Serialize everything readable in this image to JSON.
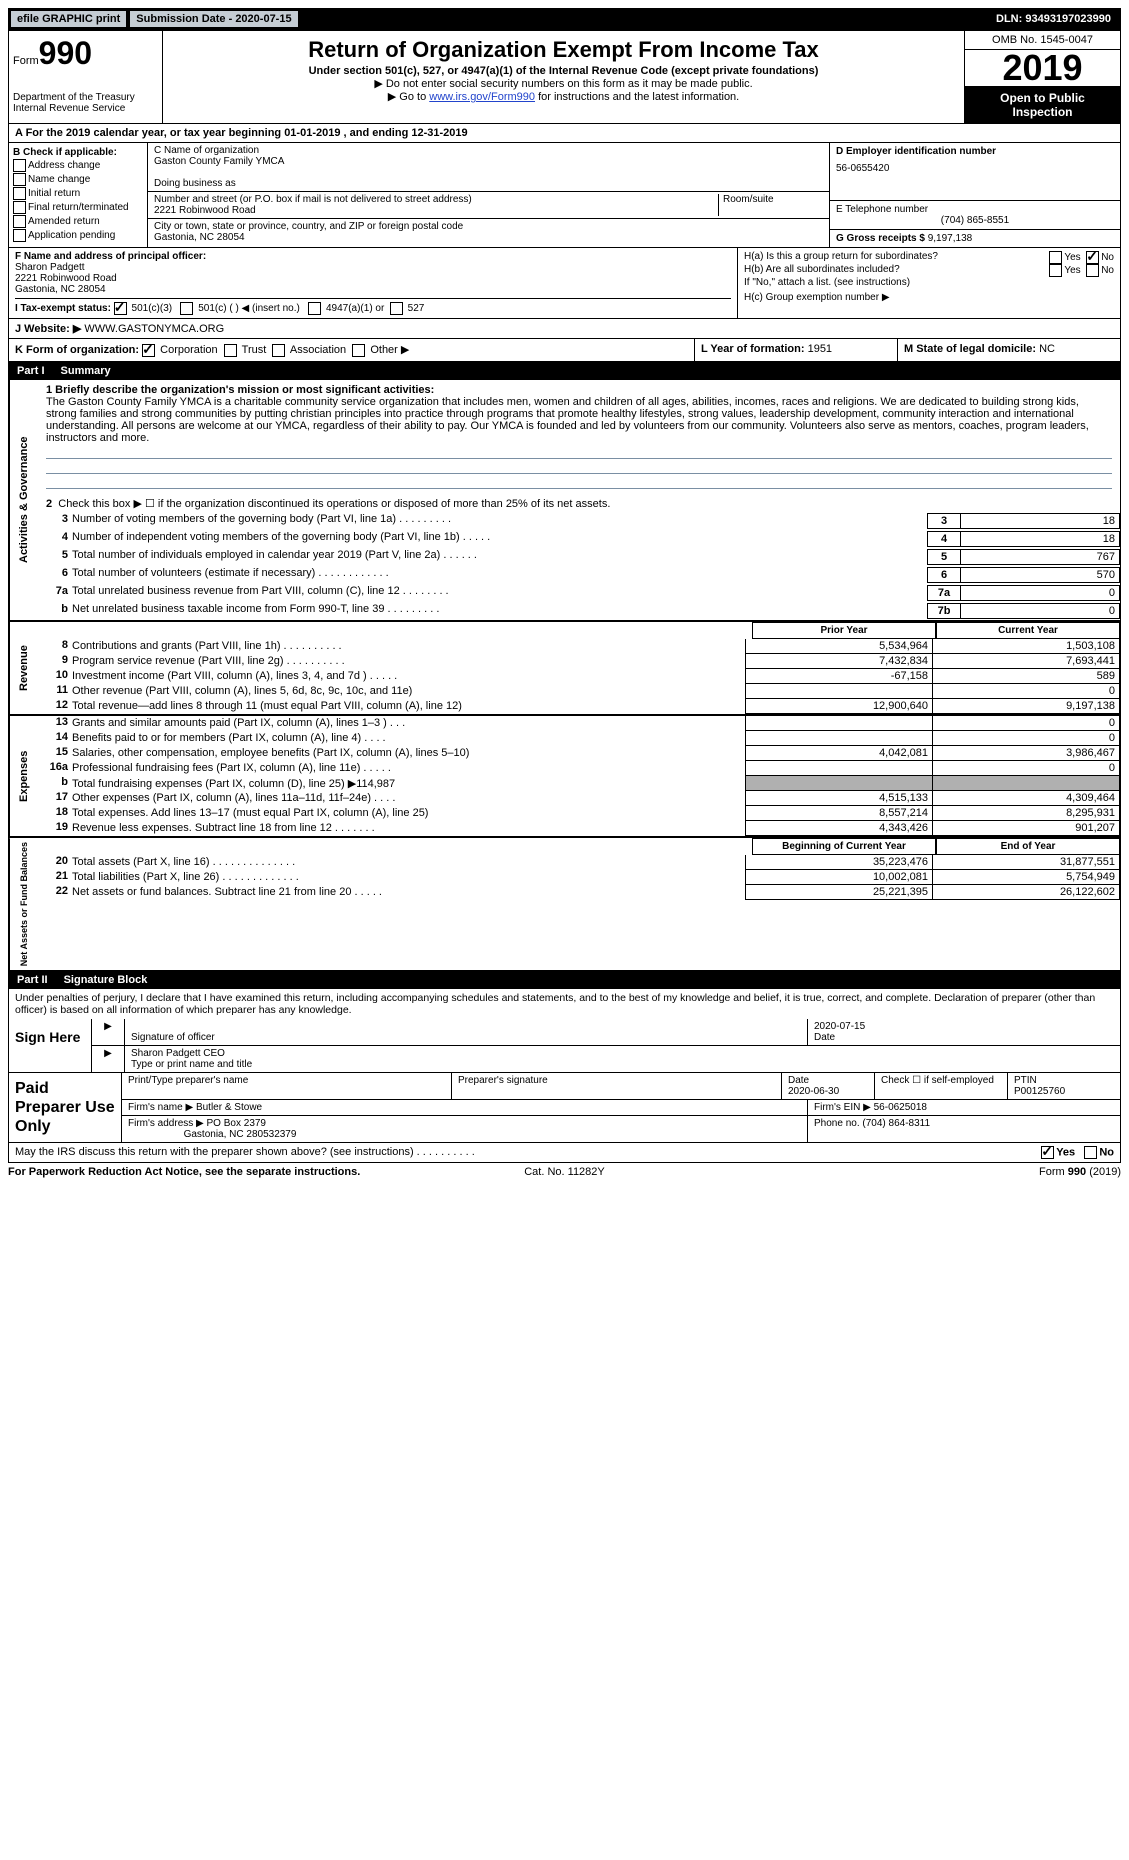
{
  "top": {
    "efile": "efile GRAPHIC print",
    "submission": "Submission Date - 2020-07-15",
    "dln": "DLN: 93493197023990"
  },
  "header": {
    "form_word": "Form",
    "form_num": "990",
    "dept": "Department of the Treasury\nInternal Revenue Service",
    "title": "Return of Organization Exempt From Income Tax",
    "sub": "Under section 501(c), 527, or 4947(a)(1) of the Internal Revenue Code (except private foundations)",
    "instr1": "▶ Do not enter social security numbers on this form as it may be made public.",
    "instr2_pre": "▶ Go to ",
    "instr2_link": "www.irs.gov/Form990",
    "instr2_post": " for instructions and the latest information.",
    "omb": "OMB No. 1545-0047",
    "year": "2019",
    "open": "Open to Public Inspection"
  },
  "line_a": "A For the 2019 calendar year, or tax year beginning 01-01-2019   , and ending 12-31-2019",
  "col_b": {
    "title": "B Check if applicable:",
    "opts": [
      "Address change",
      "Name change",
      "Initial return",
      "Final return/terminated",
      "Amended return",
      "Application pending"
    ]
  },
  "col_c": {
    "c_label": "C Name of organization",
    "c_name": "Gaston County Family YMCA",
    "dba_label": "Doing business as",
    "dba": "",
    "street_label": "Number and street (or P.O. box if mail is not delivered to street address)",
    "street": "2221 Robinwood Road",
    "room_label": "Room/suite",
    "city_label": "City or town, state or province, country, and ZIP or foreign postal code",
    "city": "Gastonia, NC  28054",
    "f_label": "F Name and address of principal officer:",
    "f_name": "Sharon Padgett",
    "f_street": "2221 Robinwood Road",
    "f_city": "Gastonia, NC  28054"
  },
  "col_d": {
    "d_label": "D Employer identification number",
    "d_val": "56-0655420",
    "e_label": "E Telephone number",
    "e_val": "(704) 865-8551",
    "g_label": "G Gross receipts $",
    "g_val": "9,197,138"
  },
  "h": {
    "ha_label": "H(a)  Is this a group return for subordinates?",
    "ha_yes": "Yes",
    "ha_no": "No",
    "hb_label": "H(b)  Are all subordinates included?",
    "hb_note": "If \"No,\" attach a list. (see instructions)",
    "hc_label": "H(c)  Group exemption number ▶"
  },
  "line_i": {
    "label": "I  Tax-exempt status:",
    "o1": "501(c)(3)",
    "o2": "501(c) (  ) ◀ (insert no.)",
    "o3": "4947(a)(1) or",
    "o4": "527"
  },
  "line_j": {
    "label": "J Website: ▶",
    "val": "WWW.GASTONYMCA.ORG"
  },
  "line_k": {
    "label": "K Form of organization:",
    "corp": "Corporation",
    "trust": "Trust",
    "assoc": "Association",
    "other": "Other ▶"
  },
  "line_l": {
    "label": "L Year of formation:",
    "val": "1951"
  },
  "line_m": {
    "label": "M State of legal domicile:",
    "val": "NC"
  },
  "part1": {
    "num": "Part I",
    "title": "Summary"
  },
  "mission": {
    "label": "1   Briefly describe the organization's mission or most significant activities:",
    "text": "The Gaston County Family YMCA is a charitable community service organization that includes men, women and children of all ages, abilities, incomes, races and religions. We are dedicated to building strong kids, strong families and strong communities by putting christian principles into practice through programs that promote healthy lifestyles, strong values, leadership development, community interaction and international understanding. All persons are welcome at our YMCA, regardless of their ability to pay. Our YMCA is founded and led by volunteers from our community. Volunteers also serve as mentors, coaches, program leaders, instructors and more."
  },
  "activities": {
    "vlabel": "Activities & Governance",
    "line2": "Check this box ▶ ☐ if the organization discontinued its operations or disposed of more than 25% of its net assets.",
    "rows": [
      {
        "n": "3",
        "d": "Number of voting members of the governing body (Part VI, line 1a)   .    .    .    .    .    .    .    .    .",
        "bn": "3",
        "v": "18"
      },
      {
        "n": "4",
        "d": "Number of independent voting members of the governing body (Part VI, line 1b)   .    .    .    .    .",
        "bn": "4",
        "v": "18"
      },
      {
        "n": "5",
        "d": "Total number of individuals employed in calendar year 2019 (Part V, line 2a)   .    .    .    .    .    .",
        "bn": "5",
        "v": "767"
      },
      {
        "n": "6",
        "d": "Total number of volunteers (estimate if necessary)   .    .    .    .    .    .    .    .    .    .    .    .",
        "bn": "6",
        "v": "570"
      },
      {
        "n": "7a",
        "d": "Total unrelated business revenue from Part VIII, column (C), line 12   .    .    .    .    .    .    .    .",
        "bn": "7a",
        "v": "0"
      },
      {
        "n": "b",
        "d": "Net unrelated business taxable income from Form 990-T, line 39   .    .    .    .    .    .    .    .    .",
        "bn": "7b",
        "v": "0"
      }
    ]
  },
  "revenue": {
    "vlabel": "Revenue",
    "header_prior": "Prior Year",
    "header_current": "Current Year",
    "rows": [
      {
        "n": "8",
        "d": "Contributions and grants (Part VIII, line 1h)   .    .    .    .    .    .    .    .    .    .",
        "p": "5,534,964",
        "c": "1,503,108"
      },
      {
        "n": "9",
        "d": "Program service revenue (Part VIII, line 2g)   .    .    .    .    .    .    .    .    .    .",
        "p": "7,432,834",
        "c": "7,693,441"
      },
      {
        "n": "10",
        "d": "Investment income (Part VIII, column (A), lines 3, 4, and 7d )   .    .    .    .    .",
        "p": "-67,158",
        "c": "589"
      },
      {
        "n": "11",
        "d": "Other revenue (Part VIII, column (A), lines 5, 6d, 8c, 9c, 10c, and 11e)",
        "p": "",
        "c": "0"
      },
      {
        "n": "12",
        "d": "Total revenue—add lines 8 through 11 (must equal Part VIII, column (A), line 12)",
        "p": "12,900,640",
        "c": "9,197,138"
      }
    ]
  },
  "expenses": {
    "vlabel": "Expenses",
    "rows": [
      {
        "n": "13",
        "d": "Grants and similar amounts paid (Part IX, column (A), lines 1–3 )   .    .    .",
        "p": "",
        "c": "0"
      },
      {
        "n": "14",
        "d": "Benefits paid to or for members (Part IX, column (A), line 4)   .    .    .    .",
        "p": "",
        "c": "0"
      },
      {
        "n": "15",
        "d": "Salaries, other compensation, employee benefits (Part IX, column (A), lines 5–10)",
        "p": "4,042,081",
        "c": "3,986,467"
      },
      {
        "n": "16a",
        "d": "Professional fundraising fees (Part IX, column (A), line 11e)   .    .    .    .    .",
        "p": "",
        "c": "0"
      },
      {
        "n": "b",
        "d": "Total fundraising expenses (Part IX, column (D), line 25) ▶114,987",
        "p": "grey",
        "c": "grey"
      },
      {
        "n": "17",
        "d": "Other expenses (Part IX, column (A), lines 11a–11d, 11f–24e)   .    .    .    .",
        "p": "4,515,133",
        "c": "4,309,464"
      },
      {
        "n": "18",
        "d": "Total expenses. Add lines 13–17 (must equal Part IX, column (A), line 25)",
        "p": "8,557,214",
        "c": "8,295,931"
      },
      {
        "n": "19",
        "d": "Revenue less expenses. Subtract line 18 from line 12   .    .    .    .    .    .    .",
        "p": "4,343,426",
        "c": "901,207"
      }
    ]
  },
  "netassets": {
    "vlabel": "Net Assets or Fund Balances",
    "header_prior": "Beginning of Current Year",
    "header_current": "End of Year",
    "rows": [
      {
        "n": "20",
        "d": "Total assets (Part X, line 16)   .    .    .    .    .    .    .    .    .    .    .    .    .    .",
        "p": "35,223,476",
        "c": "31,877,551"
      },
      {
        "n": "21",
        "d": "Total liabilities (Part X, line 26)   .    .    .    .    .    .    .    .    .    .    .    .    .",
        "p": "10,002,081",
        "c": "5,754,949"
      },
      {
        "n": "22",
        "d": "Net assets or fund balances. Subtract line 21 from line 20   .    .    .    .    .",
        "p": "25,221,395",
        "c": "26,122,602"
      }
    ]
  },
  "part2": {
    "num": "Part II",
    "title": "Signature Block"
  },
  "sig": {
    "perjury": "Under penalties of perjury, I declare that I have examined this return, including accompanying schedules and statements, and to the best of my knowledge and belief, it is true, correct, and complete. Declaration of preparer (other than officer) is based on all information of which preparer has any knowledge.",
    "sign_here": "Sign Here",
    "sig_officer": "Signature of officer",
    "date": "Date",
    "date_val": "2020-07-15",
    "name_title": "Sharon Padgett CEO",
    "name_title_label": "Type or print name and title"
  },
  "prep": {
    "label": "Paid Preparer Use Only",
    "h1": "Print/Type preparer's name",
    "h2": "Preparer's signature",
    "h3": "Date",
    "date": "2020-06-30",
    "check_label": "Check ☐ if self-employed",
    "ptin_label": "PTIN",
    "ptin": "P00125760",
    "firm_label": "Firm's name   ▶",
    "firm": "Butler & Stowe",
    "ein_label": "Firm's EIN ▶",
    "ein": "56-0625018",
    "addr_label": "Firm's address ▶",
    "addr1": "PO Box 2379",
    "addr2": "Gastonia, NC  280532379",
    "phone_label": "Phone no.",
    "phone": "(704) 864-8311"
  },
  "footer": {
    "discuss": "May the IRS discuss this return with the preparer shown above? (see instructions)   .    .    .    .    .    .    .    .    .    .",
    "yes": "Yes",
    "no": "No",
    "paperwork": "For Paperwork Reduction Act Notice, see the separate instructions.",
    "cat": "Cat. No. 11282Y",
    "form": "Form 990 (2019)"
  }
}
